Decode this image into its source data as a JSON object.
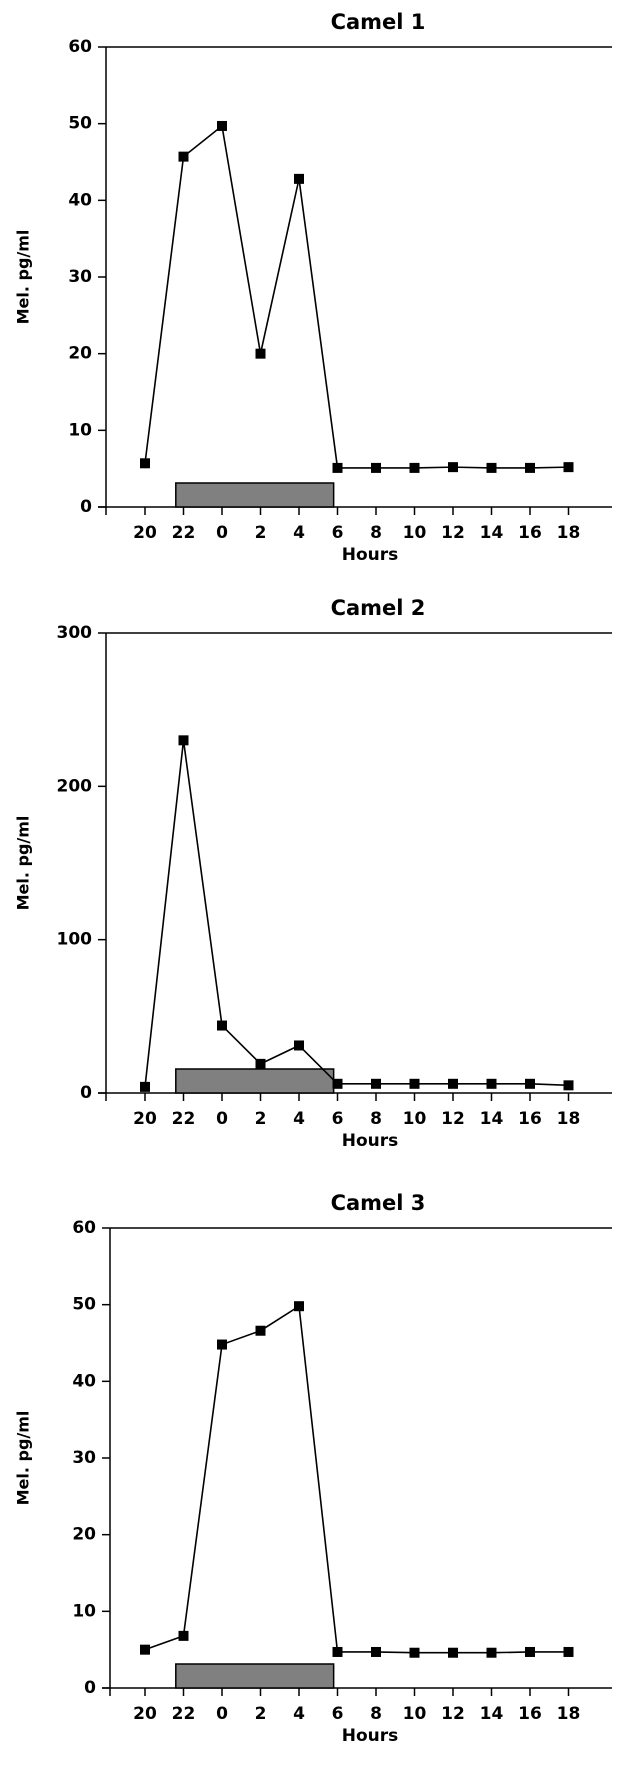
{
  "chart_data": [
    {
      "type": "line",
      "title": "Camel 1",
      "x_label": "Hours",
      "y_label": "Mel. pg/ml",
      "categories": [
        "20",
        "22",
        "0",
        "2",
        "4",
        "6",
        "8",
        "10",
        "12",
        "14",
        "16",
        "18"
      ],
      "values": [
        5.7,
        45.7,
        49.7,
        20,
        42.8,
        5.1,
        5.1,
        5.1,
        5.2,
        5.1,
        5.1,
        5.2
      ],
      "color": "#000000",
      "ylim": [
        0,
        60
      ],
      "yticks": [
        0,
        10,
        20,
        30,
        40,
        50,
        60
      ]
    },
    {
      "type": "line",
      "title": "Camel 2",
      "x_label": "Hours",
      "y_label": "Mel. pg/ml",
      "categories": [
        "20",
        "22",
        "0",
        "2",
        "4",
        "6",
        "8",
        "10",
        "12",
        "14",
        "16",
        "18"
      ],
      "values": [
        4,
        230,
        44,
        19,
        31,
        6,
        6,
        6,
        6,
        6,
        6,
        5
      ],
      "color": "#000000",
      "ylim": [
        0,
        300
      ],
      "yticks": [
        0,
        100,
        200,
        300
      ]
    },
    {
      "type": "line",
      "title": "Camel 3",
      "x_label": "Hours",
      "y_label": "Mel. pg/ml",
      "categories": [
        "20",
        "22",
        "0",
        "2",
        "4",
        "6",
        "8",
        "10",
        "12",
        "14",
        "16",
        "18"
      ],
      "values": [
        5,
        6.8,
        44.8,
        46.6,
        49.8,
        4.7,
        4.7,
        4.6,
        4.6,
        4.6,
        4.7,
        4.7
      ],
      "color": "#000000",
      "ylim": [
        0,
        60
      ],
      "yticks": [
        0,
        10,
        20,
        30,
        40,
        50,
        60
      ]
    }
  ]
}
